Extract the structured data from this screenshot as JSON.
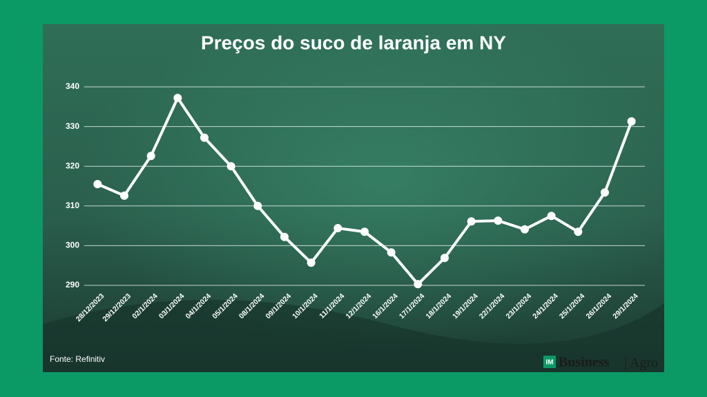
{
  "chart_data": {
    "type": "line",
    "title": "Preços do suco de laranja em NY",
    "categories": [
      "28/12/2023",
      "29/12/2023",
      "02/1/2024",
      "03/1/2024",
      "04/1/2024",
      "05/1/2024",
      "08/1/2024",
      "09/1/2024",
      "10/1/2024",
      "11/1/2024",
      "12/1/2024",
      "16/1/2024",
      "17/1/2024",
      "18/1/2024",
      "19/1/2024",
      "22/1/2024",
      "23/1/2024",
      "24/1/2024",
      "25/1/2024",
      "26/1/2024",
      "29/1/2024"
    ],
    "values": [
      315.5,
      312.6,
      322.6,
      337.2,
      327.2,
      320.0,
      310.0,
      302.2,
      295.7,
      304.4,
      303.5,
      298.3,
      290.3,
      296.9,
      306.1,
      306.3,
      304.1,
      307.5,
      303.5,
      313.4,
      331.3
    ],
    "color": "#ffffff",
    "ylim": [
      290,
      340
    ],
    "yticks": [
      290,
      300,
      310,
      320,
      330,
      340
    ],
    "grid": true,
    "source": "Fonte: Refinitiv"
  },
  "brand": {
    "mark": "IM",
    "name": "Business",
    "section": "Agro"
  }
}
